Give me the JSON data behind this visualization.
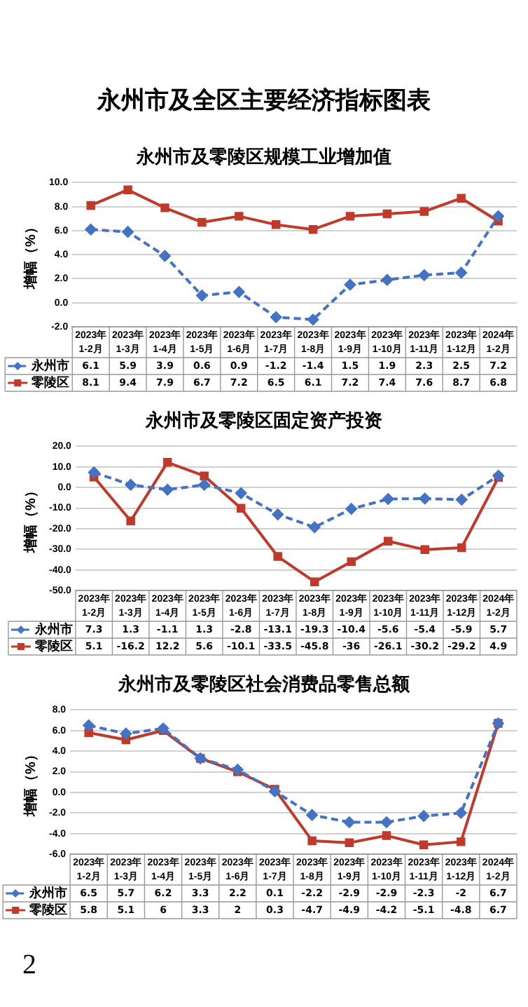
{
  "chart_data": [
    {
      "type": "line",
      "title": "永州市及零陵区规模工业增加值",
      "ylabel": "增幅（%）",
      "annotations": [
        "永州市及全区主要经济指标图表"
      ],
      "categories": [
        "2023年\n1-2月",
        "2023年\n1-3月",
        "2023年\n1-4月",
        "2023年\n1-5月",
        "2023年\n1-6月",
        "2023年\n1-7月",
        "2023年\n1-8月",
        "2023年\n1-9月",
        "2023年\n1-10月",
        "2023年\n1-11月",
        "2023年\n1-12月",
        "2024年\n1-2月"
      ],
      "series": [
        {
          "name": "永州市",
          "color": "#4472c4",
          "line_style": "dashed",
          "marker": "diamond",
          "values": [
            6.1,
            5.9,
            3.9,
            0.6,
            0.9,
            -1.2,
            -1.4,
            1.5,
            1.9,
            2.3,
            2.5,
            7.2
          ]
        },
        {
          "name": "零陵区",
          "color": "#c0392b",
          "line_style": "solid",
          "marker": "square",
          "values": [
            8.1,
            9.4,
            7.9,
            6.7,
            7.2,
            6.5,
            6.1,
            7.2,
            7.4,
            7.6,
            8.7,
            6.8
          ]
        }
      ],
      "ylim": [
        -2,
        10
      ],
      "yticks": [
        {
          "value": -2,
          "label": "-2.0"
        },
        {
          "value": 0,
          "label": "0.0"
        },
        {
          "value": 2,
          "label": "2.0"
        },
        {
          "value": 4,
          "label": "4.0"
        },
        {
          "value": 6,
          "label": "6.0"
        },
        {
          "value": 8,
          "label": "8.0"
        },
        {
          "value": 10,
          "label": "10.0"
        }
      ],
      "grid": "y",
      "legend": "bottom",
      "data_labels": true
    },
    {
      "type": "line",
      "title": "永州市及零陵区固定资产投资",
      "ylabel": "增幅（%）",
      "categories": [
        "2023年\n1-2月",
        "2023年\n1-3月",
        "2023年\n1-4月",
        "2023年\n1-5月",
        "2023年\n1-6月",
        "2023年\n1-7月",
        "2023年\n1-8月",
        "2023年\n1-9月",
        "2023年\n1-10月",
        "2023年\n1-11月",
        "2023年\n1-12月",
        "2024年\n1-2月"
      ],
      "series": [
        {
          "name": "永州市",
          "color": "#4472c4",
          "line_style": "dashed",
          "marker": "diamond",
          "values": [
            7.3,
            1.3,
            -1.1,
            1.3,
            -2.8,
            -13.1,
            -19.3,
            -10.4,
            -5.6,
            -5.4,
            -5.9,
            5.7
          ]
        },
        {
          "name": "零陵区",
          "color": "#c0392b",
          "line_style": "solid",
          "marker": "square",
          "values": [
            5.1,
            -16.2,
            12.2,
            5.6,
            -10.1,
            -33.5,
            -45.8,
            -36,
            -26.1,
            -30.2,
            -29.2,
            4.9
          ]
        }
      ],
      "ylim": [
        -50,
        20
      ],
      "yticks": [
        {
          "value": -50,
          "label": "-50.0"
        },
        {
          "value": -40,
          "label": "-40.0"
        },
        {
          "value": -30,
          "label": "-30.0"
        },
        {
          "value": -20,
          "label": "-20.0"
        },
        {
          "value": -10,
          "label": "-10.0"
        },
        {
          "value": 0,
          "label": "0.0"
        },
        {
          "value": 10,
          "label": "10.0"
        },
        {
          "value": 20,
          "label": "20.0"
        }
      ],
      "grid": "y",
      "legend": "bottom",
      "data_labels": true
    },
    {
      "type": "line",
      "title": "永州市及零陵区社会消费品零售总额",
      "ylabel": "增幅（%）",
      "annotations": [
        "2"
      ],
      "categories": [
        "2023年\n1-2月",
        "2023年\n1-3月",
        "2023年\n1-4月",
        "2023年\n1-5月",
        "2023年\n1-6月",
        "2023年\n1-7月",
        "2023年\n1-8月",
        "2023年\n1-9月",
        "2023年\n1-10月",
        "2023年\n1-11月",
        "2023年\n1-12月",
        "2024年\n1-2月"
      ],
      "series": [
        {
          "name": "永州市",
          "color": "#4472c4",
          "line_style": "dashed",
          "marker": "diamond",
          "values": [
            6.5,
            5.7,
            6.2,
            3.3,
            2.2,
            0.1,
            -2.2,
            -2.9,
            -2.9,
            -2.3,
            -2,
            6.7
          ]
        },
        {
          "name": "零陵区",
          "color": "#c0392b",
          "line_style": "solid",
          "marker": "square",
          "values": [
            5.8,
            5.1,
            6,
            3.3,
            2,
            0.3,
            -4.7,
            -4.9,
            -4.2,
            -5.1,
            -4.8,
            6.7
          ]
        }
      ],
      "ylim": [
        -6,
        8
      ],
      "yticks": [
        {
          "value": -6,
          "label": "-6.0"
        },
        {
          "value": -4,
          "label": "-4.0"
        },
        {
          "value": -2,
          "label": "-2.0"
        },
        {
          "value": 0,
          "label": "0.0"
        },
        {
          "value": 2,
          "label": "2.0"
        },
        {
          "value": 4,
          "label": "4.0"
        },
        {
          "value": 6,
          "label": "6.0"
        },
        {
          "value": 8,
          "label": "8.0"
        }
      ],
      "grid": "y",
      "legend": "bottom",
      "data_labels": true
    }
  ]
}
